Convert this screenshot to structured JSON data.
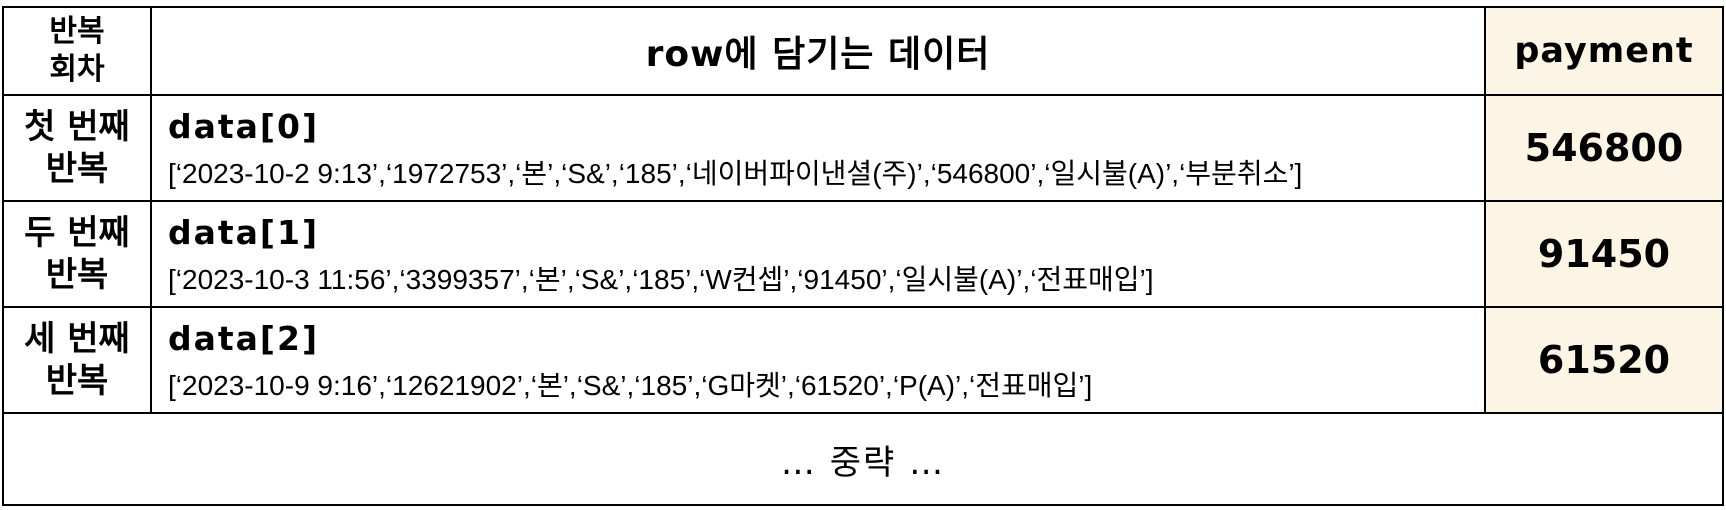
{
  "header": {
    "iteration": "반복\n회차",
    "row_data": "row에 담기는 데이터",
    "payment": "payment"
  },
  "rows": [
    {
      "iteration": "첫 번째\n반복",
      "label": "data[0]",
      "values": "[‘2023-10-2  9:13’,‘1972753’,‘본’,‘S&’,‘185’,‘네이버파이낸셜(주)’,‘546800’,‘일시불(A)’,‘부분취소’]",
      "payment": "546800"
    },
    {
      "iteration": "두 번째\n반복",
      "label": "data[1]",
      "values": "[‘2023-10-3  11:56’,‘3399357’,‘본’,‘S&’,‘185’,‘W컨셉’,‘91450’,‘일시불(A)’,‘전표매입’]",
      "payment": "91450"
    },
    {
      "iteration": "세 번째\n반복",
      "label": "data[2]",
      "values": "[‘2023-10-9  9:16’,‘12621902’,‘본’,‘S&’,‘185’,‘G마켓’,‘61520’,‘P(A)’,‘전표매입’]",
      "payment": "61520"
    }
  ],
  "footer": {
    "text": "… 중략 …"
  }
}
